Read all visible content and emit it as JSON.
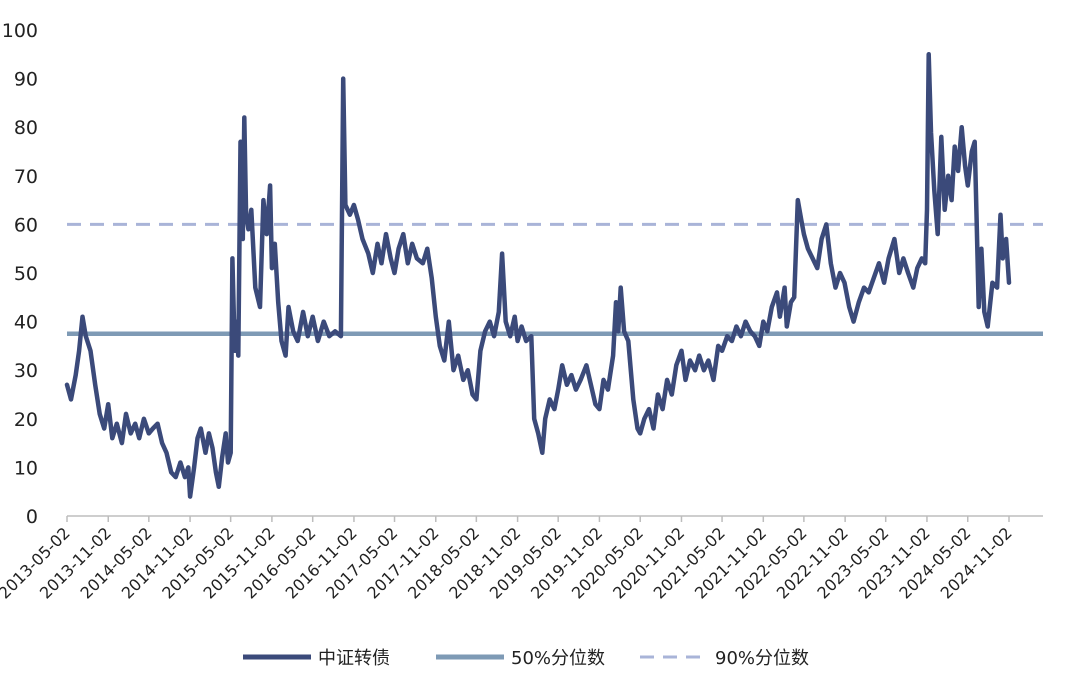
{
  "chart_data": {
    "type": "line",
    "ylim": [
      0,
      100
    ],
    "yticks": [
      "0",
      "10",
      "20",
      "30",
      "40",
      "50",
      "60",
      "70",
      "80",
      "90",
      "100"
    ],
    "xticks": [
      "2013-05-02",
      "2013-11-02",
      "2014-05-02",
      "2014-11-02",
      "2015-05-02",
      "2015-11-02",
      "2016-05-02",
      "2016-11-02",
      "2017-05-02",
      "2017-11-02",
      "2018-05-02",
      "2018-11-02",
      "2019-05-02",
      "2019-11-02",
      "2020-05-02",
      "2020-11-02",
      "2021-05-02",
      "2021-11-02",
      "2022-05-02",
      "2022-11-02",
      "2023-05-02",
      "2023-11-02",
      "2024-05-02",
      "2024-11-02"
    ],
    "legend_position": "bottom",
    "grid": false,
    "colors": {
      "main": "#3b4a7a",
      "median": "#7e9ab5",
      "p90": "#a9b4d8"
    },
    "series": [
      {
        "name": "中证转债",
        "points": [
          [
            "2013-05-02",
            27
          ],
          [
            "2013-05-20",
            24
          ],
          [
            "2013-06-10",
            29
          ],
          [
            "2013-06-25",
            34
          ],
          [
            "2013-07-10",
            41
          ],
          [
            "2013-07-25",
            37
          ],
          [
            "2013-08-15",
            34
          ],
          [
            "2013-09-05",
            27
          ],
          [
            "2013-09-25",
            21
          ],
          [
            "2013-10-15",
            18
          ],
          [
            "2013-11-02",
            23
          ],
          [
            "2013-11-20",
            16
          ],
          [
            "2013-12-10",
            19
          ],
          [
            "2014-01-02",
            15
          ],
          [
            "2014-01-20",
            21
          ],
          [
            "2014-02-10",
            17
          ],
          [
            "2014-03-02",
            19
          ],
          [
            "2014-03-20",
            16
          ],
          [
            "2014-04-10",
            20
          ],
          [
            "2014-05-02",
            17
          ],
          [
            "2014-05-20",
            18
          ],
          [
            "2014-06-10",
            19
          ],
          [
            "2014-06-30",
            15
          ],
          [
            "2014-07-20",
            13
          ],
          [
            "2014-08-10",
            9
          ],
          [
            "2014-08-30",
            8
          ],
          [
            "2014-09-20",
            11
          ],
          [
            "2014-10-10",
            8
          ],
          [
            "2014-10-25",
            10
          ],
          [
            "2014-11-02",
            4
          ],
          [
            "2014-11-20",
            10
          ],
          [
            "2014-12-05",
            16
          ],
          [
            "2014-12-20",
            18
          ],
          [
            "2015-01-10",
            13
          ],
          [
            "2015-01-25",
            17
          ],
          [
            "2015-02-10",
            14
          ],
          [
            "2015-02-25",
            9
          ],
          [
            "2015-03-10",
            6
          ],
          [
            "2015-03-25",
            12
          ],
          [
            "2015-04-10",
            17
          ],
          [
            "2015-04-20",
            11
          ],
          [
            "2015-05-02",
            13
          ],
          [
            "2015-05-10",
            53
          ],
          [
            "2015-05-20",
            34
          ],
          [
            "2015-05-28",
            40
          ],
          [
            "2015-06-05",
            33
          ],
          [
            "2015-06-15",
            77
          ],
          [
            "2015-06-25",
            57
          ],
          [
            "2015-07-02",
            82
          ],
          [
            "2015-07-10",
            62
          ],
          [
            "2015-07-20",
            59
          ],
          [
            "2015-08-02",
            63
          ],
          [
            "2015-08-20",
            47
          ],
          [
            "2015-09-10",
            43
          ],
          [
            "2015-09-25",
            65
          ],
          [
            "2015-10-10",
            58
          ],
          [
            "2015-10-25",
            68
          ],
          [
            "2015-11-02",
            51
          ],
          [
            "2015-11-15",
            56
          ],
          [
            "2015-11-30",
            44
          ],
          [
            "2015-12-15",
            36
          ],
          [
            "2016-01-02",
            33
          ],
          [
            "2016-01-15",
            43
          ],
          [
            "2016-02-05",
            38
          ],
          [
            "2016-02-25",
            36
          ],
          [
            "2016-03-20",
            42
          ],
          [
            "2016-04-10",
            37
          ],
          [
            "2016-05-02",
            41
          ],
          [
            "2016-05-25",
            36
          ],
          [
            "2016-06-20",
            40
          ],
          [
            "2016-07-15",
            37
          ],
          [
            "2016-08-10",
            38
          ],
          [
            "2016-09-05",
            37
          ],
          [
            "2016-09-15",
            90
          ],
          [
            "2016-09-25",
            64
          ],
          [
            "2016-10-15",
            62
          ],
          [
            "2016-11-02",
            64
          ],
          [
            "2016-11-20",
            61
          ],
          [
            "2016-12-10",
            57
          ],
          [
            "2017-01-05",
            54
          ],
          [
            "2017-01-25",
            50
          ],
          [
            "2017-02-15",
            56
          ],
          [
            "2017-03-05",
            52
          ],
          [
            "2017-03-25",
            58
          ],
          [
            "2017-04-15",
            53
          ],
          [
            "2017-05-02",
            50
          ],
          [
            "2017-05-20",
            55
          ],
          [
            "2017-06-10",
            58
          ],
          [
            "2017-06-30",
            52
          ],
          [
            "2017-07-20",
            56
          ],
          [
            "2017-08-10",
            53
          ],
          [
            "2017-09-05",
            52
          ],
          [
            "2017-09-25",
            55
          ],
          [
            "2017-10-15",
            49
          ],
          [
            "2017-11-02",
            41
          ],
          [
            "2017-11-20",
            35
          ],
          [
            "2017-12-10",
            32
          ],
          [
            "2017-12-30",
            40
          ],
          [
            "2018-01-20",
            30
          ],
          [
            "2018-02-10",
            33
          ],
          [
            "2018-03-05",
            28
          ],
          [
            "2018-03-25",
            30
          ],
          [
            "2018-04-15",
            25
          ],
          [
            "2018-05-02",
            24
          ],
          [
            "2018-05-20",
            34
          ],
          [
            "2018-06-10",
            38
          ],
          [
            "2018-07-01",
            40
          ],
          [
            "2018-07-20",
            37
          ],
          [
            "2018-08-10",
            42
          ],
          [
            "2018-08-25",
            54
          ],
          [
            "2018-09-10",
            40
          ],
          [
            "2018-09-30",
            37
          ],
          [
            "2018-10-20",
            41
          ],
          [
            "2018-11-02",
            36
          ],
          [
            "2018-11-20",
            39
          ],
          [
            "2018-12-10",
            36
          ],
          [
            "2019-01-02",
            37
          ],
          [
            "2019-01-15",
            20
          ],
          [
            "2019-02-02",
            17
          ],
          [
            "2019-02-20",
            13
          ],
          [
            "2019-03-05",
            20
          ],
          [
            "2019-03-25",
            24
          ],
          [
            "2019-04-15",
            22
          ],
          [
            "2019-05-02",
            26
          ],
          [
            "2019-05-20",
            31
          ],
          [
            "2019-06-10",
            27
          ],
          [
            "2019-06-30",
            29
          ],
          [
            "2019-07-20",
            26
          ],
          [
            "2019-08-10",
            28
          ],
          [
            "2019-09-05",
            31
          ],
          [
            "2019-09-25",
            27
          ],
          [
            "2019-10-15",
            23
          ],
          [
            "2019-11-02",
            22
          ],
          [
            "2019-11-20",
            28
          ],
          [
            "2019-12-10",
            26
          ],
          [
            "2020-01-02",
            33
          ],
          [
            "2020-01-15",
            44
          ],
          [
            "2020-01-25",
            38
          ],
          [
            "2020-02-05",
            47
          ],
          [
            "2020-02-20",
            38
          ],
          [
            "2020-03-10",
            36
          ],
          [
            "2020-04-01",
            24
          ],
          [
            "2020-04-20",
            18
          ],
          [
            "2020-05-02",
            17
          ],
          [
            "2020-05-20",
            20
          ],
          [
            "2020-06-10",
            22
          ],
          [
            "2020-06-30",
            18
          ],
          [
            "2020-07-20",
            25
          ],
          [
            "2020-08-10",
            22
          ],
          [
            "2020-08-30",
            28
          ],
          [
            "2020-09-20",
            25
          ],
          [
            "2020-10-10",
            31
          ],
          [
            "2020-11-02",
            34
          ],
          [
            "2020-11-20",
            28
          ],
          [
            "2020-12-10",
            32
          ],
          [
            "2021-01-02",
            30
          ],
          [
            "2021-01-20",
            33
          ],
          [
            "2021-02-10",
            30
          ],
          [
            "2021-03-02",
            32
          ],
          [
            "2021-03-25",
            28
          ],
          [
            "2021-04-15",
            35
          ],
          [
            "2021-05-02",
            34
          ],
          [
            "2021-05-25",
            37
          ],
          [
            "2021-06-15",
            36
          ],
          [
            "2021-07-05",
            39
          ],
          [
            "2021-07-25",
            37
          ],
          [
            "2021-08-15",
            40
          ],
          [
            "2021-09-05",
            38
          ],
          [
            "2021-09-25",
            37
          ],
          [
            "2021-10-15",
            35
          ],
          [
            "2021-11-02",
            40
          ],
          [
            "2021-11-20",
            38
          ],
          [
            "2021-12-10",
            43
          ],
          [
            "2022-01-02",
            46
          ],
          [
            "2022-01-15",
            41
          ],
          [
            "2022-02-05",
            47
          ],
          [
            "2022-02-15",
            39
          ],
          [
            "2022-03-05",
            44
          ],
          [
            "2022-03-20",
            45
          ],
          [
            "2022-04-05",
            65
          ],
          [
            "2022-04-20",
            61
          ],
          [
            "2022-05-02",
            58
          ],
          [
            "2022-05-20",
            55
          ],
          [
            "2022-06-10",
            53
          ],
          [
            "2022-07-01",
            51
          ],
          [
            "2022-07-20",
            57
          ],
          [
            "2022-08-10",
            60
          ],
          [
            "2022-08-30",
            52
          ],
          [
            "2022-09-20",
            47
          ],
          [
            "2022-10-10",
            50
          ],
          [
            "2022-10-30",
            48
          ],
          [
            "2022-11-20",
            43
          ],
          [
            "2022-12-10",
            40
          ],
          [
            "2023-01-02",
            44
          ],
          [
            "2023-01-25",
            47
          ],
          [
            "2023-02-15",
            46
          ],
          [
            "2023-03-10",
            49
          ],
          [
            "2023-04-02",
            52
          ],
          [
            "2023-04-25",
            48
          ],
          [
            "2023-05-15",
            53
          ],
          [
            "2023-06-10",
            57
          ],
          [
            "2023-07-01",
            50
          ],
          [
            "2023-07-20",
            53
          ],
          [
            "2023-08-10",
            50
          ],
          [
            "2023-09-02",
            47
          ],
          [
            "2023-09-20",
            51
          ],
          [
            "2023-10-10",
            53
          ],
          [
            "2023-10-25",
            52
          ],
          [
            "2023-11-02",
            63
          ],
          [
            "2023-11-10",
            95
          ],
          [
            "2023-11-20",
            79
          ],
          [
            "2023-12-05",
            67
          ],
          [
            "2023-12-20",
            58
          ],
          [
            "2024-01-05",
            78
          ],
          [
            "2024-01-20",
            63
          ],
          [
            "2024-02-05",
            70
          ],
          [
            "2024-02-20",
            65
          ],
          [
            "2024-03-05",
            76
          ],
          [
            "2024-03-20",
            71
          ],
          [
            "2024-04-05",
            80
          ],
          [
            "2024-04-20",
            72
          ],
          [
            "2024-05-02",
            68
          ],
          [
            "2024-05-20",
            75
          ],
          [
            "2024-06-02",
            77
          ],
          [
            "2024-06-10",
            62
          ],
          [
            "2024-06-20",
            43
          ],
          [
            "2024-07-02",
            55
          ],
          [
            "2024-07-15",
            42
          ],
          [
            "2024-07-30",
            39
          ],
          [
            "2024-08-20",
            48
          ],
          [
            "2024-09-10",
            47
          ],
          [
            "2024-09-25",
            62
          ],
          [
            "2024-10-05",
            53
          ],
          [
            "2024-10-20",
            57
          ],
          [
            "2024-11-02",
            48
          ]
        ]
      },
      {
        "name": "50%分位数",
        "value": 37.5
      },
      {
        "name": "90%分位数",
        "value": 60
      }
    ]
  }
}
